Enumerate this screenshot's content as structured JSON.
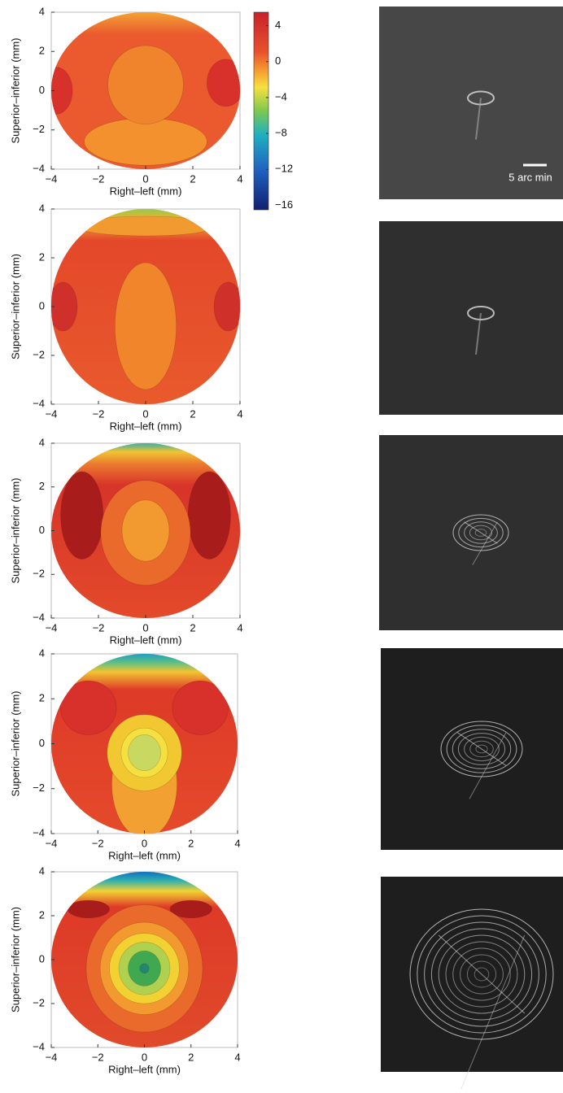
{
  "chart_data": [
    {
      "type": "contour",
      "xlabel": "Right–left (mm)",
      "ylabel": "Superior–inferior (mm)",
      "xlim": [
        -4,
        4
      ],
      "ylim": [
        -4,
        4
      ],
      "xticks": [
        {
          "value": -4,
          "label": "−4"
        },
        {
          "value": -2,
          "label": "−2"
        },
        0,
        2,
        4
      ],
      "yticks": [
        {
          "value": -4,
          "label": "−4"
        },
        {
          "value": -2,
          "label": "−2"
        },
        0,
        2,
        4
      ],
      "colorbar": {
        "lim": [
          -16.5,
          5.5
        ],
        "ticks": [
          4,
          0,
          {
            "value": -4,
            "label": "−4"
          },
          {
            "value": -8,
            "label": "−8"
          },
          {
            "value": -12,
            "label": "−12"
          },
          {
            "value": -16,
            "label": "−16"
          }
        ]
      },
      "scale_bar_label": "5 arc min"
    },
    {
      "type": "contour",
      "xlabel": "Right–left (mm)",
      "ylabel": "Superior–inferior (mm)",
      "xlim": [
        -4,
        4
      ],
      "ylim": [
        -4,
        4
      ],
      "xticks": [
        {
          "value": -4,
          "label": "−4"
        },
        {
          "value": -2,
          "label": "−2"
        },
        0,
        2,
        4
      ],
      "yticks": [
        {
          "value": -4,
          "label": "−4"
        },
        {
          "value": -2,
          "label": "−2"
        },
        0,
        2,
        4
      ]
    },
    {
      "type": "contour",
      "xlabel": "Right–left (mm)",
      "ylabel": "Superior–inferior (mm)",
      "xlim": [
        -4,
        4
      ],
      "ylim": [
        -4,
        4
      ],
      "xticks": [
        {
          "value": -4,
          "label": "−4"
        },
        {
          "value": -2,
          "label": "−2"
        },
        0,
        2,
        4
      ],
      "yticks": [
        {
          "value": -4,
          "label": "−4"
        },
        {
          "value": -2,
          "label": "−2"
        },
        0,
        2,
        4
      ]
    },
    {
      "type": "contour",
      "xlabel": "Right–left (mm)",
      "ylabel": "Superior–inferior (mm)",
      "xlim": [
        -4,
        4
      ],
      "ylim": [
        -4,
        4
      ],
      "xticks": [
        {
          "value": -4,
          "label": "−4"
        },
        {
          "value": -2,
          "label": "−2"
        },
        0,
        2,
        4
      ],
      "yticks": [
        {
          "value": -4,
          "label": "−4"
        },
        {
          "value": -2,
          "label": "−2"
        },
        0,
        2,
        4
      ]
    },
    {
      "type": "contour",
      "xlabel": "Right–left (mm)",
      "ylabel": "Superior–inferior (mm)",
      "xlim": [
        -4,
        4
      ],
      "ylim": [
        -4,
        4
      ],
      "xticks": [
        {
          "value": -4,
          "label": "−4"
        },
        {
          "value": -2,
          "label": "−2"
        },
        0,
        2,
        4
      ],
      "yticks": [
        {
          "value": -4,
          "label": "−4"
        },
        {
          "value": -2,
          "label": "−2"
        },
        0,
        2,
        4
      ]
    }
  ]
}
